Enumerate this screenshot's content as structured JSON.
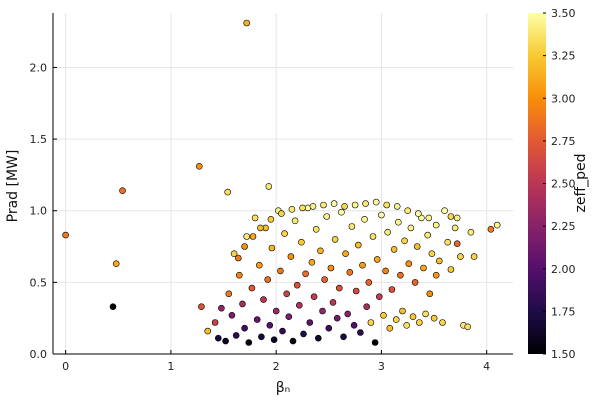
{
  "chart_data": {
    "type": "scatter",
    "title": "",
    "xlabel": "βₙ",
    "ylabel": "Prad [MW]",
    "xlim": [
      -0.12,
      4.25
    ],
    "ylim": [
      0.0,
      2.38
    ],
    "x_ticks": [
      0,
      1,
      2,
      3,
      4
    ],
    "y_ticks": [
      0.0,
      0.5,
      1.0,
      1.5,
      2.0
    ],
    "x_tick_labels": [
      "0",
      "1",
      "2",
      "3",
      "4"
    ],
    "y_tick_labels": [
      "0.0",
      "0.5",
      "1.0",
      "1.5",
      "2.0"
    ],
    "grid": true,
    "colorbar": {
      "label": "zeff_ped",
      "colormap": "inferno",
      "range": [
        1.5,
        3.5
      ],
      "ticks": [
        1.5,
        1.75,
        2.0,
        2.25,
        2.5,
        2.75,
        3.0,
        3.25,
        3.5
      ],
      "tick_labels": [
        "1.50",
        "1.75",
        "2.00",
        "2.25",
        "2.50",
        "2.75",
        "3.00",
        "3.25",
        "3.50"
      ]
    },
    "points": [
      [
        0.0,
        0.83,
        2.9
      ],
      [
        0.45,
        0.33,
        1.5
      ],
      [
        0.48,
        0.63,
        3.1
      ],
      [
        0.54,
        1.14,
        2.85
      ],
      [
        1.27,
        1.31,
        3.0
      ],
      [
        1.54,
        1.13,
        3.35
      ],
      [
        1.72,
        2.31,
        3.15
      ],
      [
        1.93,
        1.17,
        3.4
      ],
      [
        1.29,
        0.33,
        2.7
      ],
      [
        1.35,
        0.16,
        3.2
      ],
      [
        1.42,
        0.22,
        2.6
      ],
      [
        1.45,
        0.11,
        1.7
      ],
      [
        1.48,
        0.32,
        2.3
      ],
      [
        1.52,
        0.09,
        1.6
      ],
      [
        1.55,
        0.42,
        2.9
      ],
      [
        1.58,
        0.27,
        2.2
      ],
      [
        1.6,
        0.7,
        3.3
      ],
      [
        1.62,
        0.13,
        1.8
      ],
      [
        1.65,
        0.55,
        2.95
      ],
      [
        1.68,
        0.35,
        2.4
      ],
      [
        1.7,
        0.18,
        1.9
      ],
      [
        1.72,
        0.82,
        3.4
      ],
      [
        1.74,
        0.08,
        1.55
      ],
      [
        1.77,
        0.46,
        2.75
      ],
      [
        1.8,
        0.95,
        3.35
      ],
      [
        1.82,
        0.24,
        2.1
      ],
      [
        1.84,
        0.62,
        3.05
      ],
      [
        1.86,
        0.12,
        1.7
      ],
      [
        1.88,
        0.38,
        2.5
      ],
      [
        1.9,
        0.88,
        3.2
      ],
      [
        1.92,
        0.52,
        2.85
      ],
      [
        1.94,
        0.2,
        2.0
      ],
      [
        1.96,
        0.74,
        3.15
      ],
      [
        1.98,
        0.1,
        1.6
      ],
      [
        2.0,
        0.3,
        2.35
      ],
      [
        2.02,
        1.0,
        3.45
      ],
      [
        2.04,
        0.58,
        2.9
      ],
      [
        2.06,
        0.16,
        1.85
      ],
      [
        2.08,
        0.84,
        3.3
      ],
      [
        2.1,
        0.42,
        2.6
      ],
      [
        2.12,
        0.26,
        2.2
      ],
      [
        2.14,
        0.68,
        3.0
      ],
      [
        2.16,
        0.09,
        1.55
      ],
      [
        2.18,
        0.93,
        3.4
      ],
      [
        2.2,
        0.48,
        2.7
      ],
      [
        2.22,
        0.34,
        2.45
      ],
      [
        2.24,
        0.78,
        3.25
      ],
      [
        2.26,
        0.14,
        1.75
      ],
      [
        2.28,
        0.56,
        2.85
      ],
      [
        2.3,
        1.02,
        3.5
      ],
      [
        2.32,
        0.22,
        2.05
      ],
      [
        2.34,
        0.64,
        3.1
      ],
      [
        2.36,
        0.4,
        2.55
      ],
      [
        2.38,
        0.87,
        3.35
      ],
      [
        2.4,
        0.11,
        1.65
      ],
      [
        2.42,
        0.72,
        3.15
      ],
      [
        2.44,
        0.3,
        2.3
      ],
      [
        2.46,
        0.52,
        2.8
      ],
      [
        2.48,
        0.96,
        3.45
      ],
      [
        2.5,
        0.18,
        1.9
      ],
      [
        2.52,
        0.6,
        3.0
      ],
      [
        2.54,
        0.36,
        2.5
      ],
      [
        2.56,
        0.8,
        3.3
      ],
      [
        2.58,
        0.25,
        2.15
      ],
      [
        2.6,
        0.46,
        2.7
      ],
      [
        2.62,
        0.99,
        3.5
      ],
      [
        2.64,
        0.12,
        1.7
      ],
      [
        2.66,
        0.7,
        3.1
      ],
      [
        2.68,
        0.28,
        2.25
      ],
      [
        2.7,
        0.57,
        2.9
      ],
      [
        2.72,
        0.89,
        3.4
      ],
      [
        2.74,
        0.2,
        2.0
      ],
      [
        2.76,
        0.44,
        2.65
      ],
      [
        2.78,
        0.76,
        3.2
      ],
      [
        2.8,
        0.15,
        1.8
      ],
      [
        2.82,
        0.62,
        3.05
      ],
      [
        2.84,
        0.94,
        3.45
      ],
      [
        2.86,
        0.33,
        2.4
      ],
      [
        2.88,
        0.5,
        2.8
      ],
      [
        2.9,
        0.22,
        3.3
      ],
      [
        2.92,
        0.82,
        3.35
      ],
      [
        2.94,
        0.08,
        1.5
      ],
      [
        2.96,
        0.66,
        3.1
      ],
      [
        2.98,
        0.4,
        2.55
      ],
      [
        3.0,
        0.97,
        3.5
      ],
      [
        3.02,
        0.27,
        3.25
      ],
      [
        3.04,
        0.58,
        2.95
      ],
      [
        3.06,
        0.85,
        3.4
      ],
      [
        3.08,
        0.18,
        3.2
      ],
      [
        3.1,
        0.45,
        2.7
      ],
      [
        3.12,
        0.73,
        3.2
      ],
      [
        3.14,
        0.24,
        3.3
      ],
      [
        3.16,
        0.92,
        3.45
      ],
      [
        3.18,
        0.55,
        2.85
      ],
      [
        3.2,
        0.3,
        3.2
      ],
      [
        3.22,
        0.79,
        3.3
      ],
      [
        3.24,
        0.2,
        3.35
      ],
      [
        3.26,
        0.63,
        3.0
      ],
      [
        3.28,
        0.88,
        3.45
      ],
      [
        3.3,
        0.26,
        3.25
      ],
      [
        3.32,
        0.5,
        2.8
      ],
      [
        3.34,
        0.75,
        3.2
      ],
      [
        3.36,
        0.22,
        3.3
      ],
      [
        3.38,
        0.95,
        3.5
      ],
      [
        3.4,
        0.6,
        3.1
      ],
      [
        3.42,
        0.28,
        3.35
      ],
      [
        3.44,
        0.83,
        3.4
      ],
      [
        3.46,
        0.42,
        3.0
      ],
      [
        3.48,
        0.7,
        3.3
      ],
      [
        3.5,
        0.25,
        3.25
      ],
      [
        3.52,
        0.9,
        3.45
      ],
      [
        3.55,
        0.65,
        3.2
      ],
      [
        3.58,
        0.22,
        3.3
      ],
      [
        3.6,
        1.0,
        3.5
      ],
      [
        3.63,
        0.78,
        3.35
      ],
      [
        3.66,
        0.59,
        3.25
      ],
      [
        3.7,
        0.88,
        3.4
      ],
      [
        3.72,
        0.77,
        2.8
      ],
      [
        3.75,
        0.68,
        3.3
      ],
      [
        3.78,
        0.2,
        3.4
      ],
      [
        3.82,
        0.19,
        3.35
      ],
      [
        3.88,
        0.68,
        3.3
      ],
      [
        3.72,
        0.95,
        3.45
      ],
      [
        3.85,
        0.85,
        3.4
      ],
      [
        4.04,
        0.87,
        2.9
      ],
      [
        4.1,
        0.9,
        3.45
      ],
      [
        3.66,
        0.96,
        3.3
      ],
      [
        3.52,
        0.55,
        3.05
      ],
      [
        3.45,
        0.95,
        3.45
      ],
      [
        3.35,
        0.98,
        3.5
      ],
      [
        3.25,
        1.0,
        3.4
      ],
      [
        3.15,
        1.03,
        3.45
      ],
      [
        3.05,
        1.04,
        3.35
      ],
      [
        2.95,
        1.06,
        3.5
      ],
      [
        2.85,
        1.05,
        3.4
      ],
      [
        2.75,
        1.04,
        3.45
      ],
      [
        2.65,
        1.03,
        3.3
      ],
      [
        2.55,
        1.05,
        3.5
      ],
      [
        2.45,
        1.04,
        3.4
      ],
      [
        2.35,
        1.03,
        3.45
      ],
      [
        2.25,
        1.02,
        3.35
      ],
      [
        2.15,
        1.01,
        3.4
      ],
      [
        2.05,
        0.98,
        3.3
      ],
      [
        1.95,
        0.94,
        3.25
      ],
      [
        1.85,
        0.88,
        3.2
      ],
      [
        1.78,
        0.82,
        3.1
      ],
      [
        1.7,
        0.75,
        3.0
      ],
      [
        1.64,
        0.67,
        2.9
      ]
    ]
  }
}
